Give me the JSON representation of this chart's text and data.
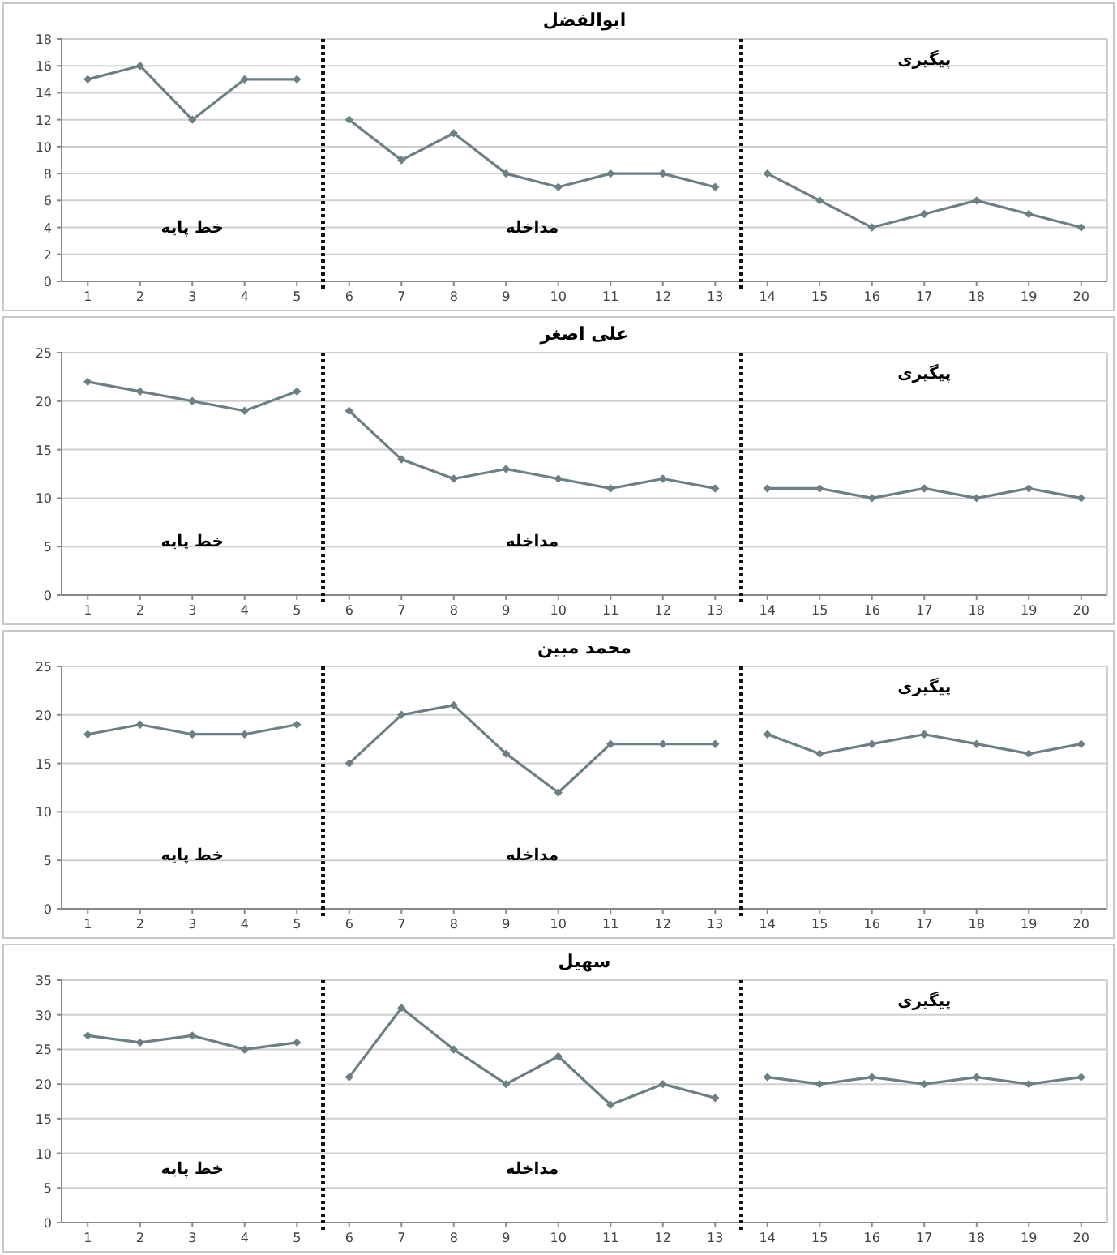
{
  "chart_data": [
    {
      "type": "line",
      "title": "ابوالفضل",
      "x": [
        1,
        2,
        3,
        4,
        5,
        6,
        7,
        8,
        9,
        10,
        11,
        12,
        13,
        14,
        15,
        16,
        17,
        18,
        19,
        20
      ],
      "xlim": [
        0.5,
        20.5
      ],
      "xticks": [
        1,
        2,
        3,
        4,
        5,
        6,
        7,
        8,
        9,
        10,
        11,
        12,
        13,
        14,
        15,
        16,
        17,
        18,
        19,
        20
      ],
      "ylim": [
        0,
        18
      ],
      "yticks": [
        0,
        2,
        4,
        6,
        8,
        10,
        12,
        14,
        16,
        18
      ],
      "grid": "y",
      "marker": "diamond",
      "series": [
        {
          "color": "#6b7f84",
          "values": [
            15,
            16,
            12,
            15,
            15,
            null,
            null,
            null,
            null,
            null,
            null,
            null,
            null,
            null,
            null,
            null,
            null,
            null,
            null,
            null
          ]
        },
        {
          "color": "#6b7f84",
          "values": [
            null,
            null,
            null,
            null,
            null,
            12,
            9,
            11,
            8,
            7,
            8,
            8,
            7,
            null,
            null,
            null,
            null,
            null,
            null,
            null
          ]
        },
        {
          "color": "#6b7f84",
          "values": [
            null,
            null,
            null,
            null,
            null,
            null,
            null,
            null,
            null,
            null,
            null,
            null,
            null,
            8,
            6,
            4,
            5,
            6,
            5,
            4
          ]
        }
      ],
      "ref_lines": [
        {
          "axis": "x",
          "value": 5.5,
          "line_style": "dotted",
          "color": "#111111"
        },
        {
          "axis": "x",
          "value": 13.5,
          "line_style": "dotted",
          "color": "#111111"
        }
      ],
      "annotations": [
        "خط پایه",
        "مداخله",
        "پیگیری"
      ]
    },
    {
      "type": "line",
      "title": "علی اصغر",
      "x": [
        1,
        2,
        3,
        4,
        5,
        6,
        7,
        8,
        9,
        10,
        11,
        12,
        13,
        14,
        15,
        16,
        17,
        18,
        19,
        20
      ],
      "xlim": [
        0.5,
        20.5
      ],
      "xticks": [
        1,
        2,
        3,
        4,
        5,
        6,
        7,
        8,
        9,
        10,
        11,
        12,
        13,
        14,
        15,
        16,
        17,
        18,
        19,
        20
      ],
      "ylim": [
        0,
        25
      ],
      "yticks": [
        0,
        5,
        10,
        15,
        20,
        25
      ],
      "grid": "y",
      "marker": "diamond",
      "series": [
        {
          "color": "#6b7f84",
          "values": [
            22,
            21,
            20,
            19,
            21,
            null,
            null,
            null,
            null,
            null,
            null,
            null,
            null,
            null,
            null,
            null,
            null,
            null,
            null,
            null
          ]
        },
        {
          "color": "#6b7f84",
          "values": [
            null,
            null,
            null,
            null,
            null,
            19,
            14,
            12,
            13,
            12,
            11,
            12,
            11,
            null,
            null,
            null,
            null,
            null,
            null,
            null
          ]
        },
        {
          "color": "#6b7f84",
          "values": [
            null,
            null,
            null,
            null,
            null,
            null,
            null,
            null,
            null,
            null,
            null,
            null,
            null,
            11,
            11,
            10,
            11,
            10,
            11,
            10
          ]
        }
      ],
      "ref_lines": [
        {
          "axis": "x",
          "value": 5.5,
          "line_style": "dotted",
          "color": "#111111"
        },
        {
          "axis": "x",
          "value": 13.5,
          "line_style": "dotted",
          "color": "#111111"
        }
      ],
      "annotations": [
        "خط پایه",
        "مداخله",
        "پیگیری"
      ]
    },
    {
      "type": "line",
      "title": "محمد مبین",
      "x": [
        1,
        2,
        3,
        4,
        5,
        6,
        7,
        8,
        9,
        10,
        11,
        12,
        13,
        14,
        15,
        16,
        17,
        18,
        19,
        20
      ],
      "xlim": [
        0.5,
        20.5
      ],
      "xticks": [
        1,
        2,
        3,
        4,
        5,
        6,
        7,
        8,
        9,
        10,
        11,
        12,
        13,
        14,
        15,
        16,
        17,
        18,
        19,
        20
      ],
      "ylim": [
        0,
        25
      ],
      "yticks": [
        0,
        5,
        10,
        15,
        20,
        25
      ],
      "grid": "y",
      "marker": "diamond",
      "series": [
        {
          "color": "#6b7f84",
          "values": [
            18,
            19,
            18,
            18,
            19,
            null,
            null,
            null,
            null,
            null,
            null,
            null,
            null,
            null,
            null,
            null,
            null,
            null,
            null,
            null
          ]
        },
        {
          "color": "#6b7f84",
          "values": [
            null,
            null,
            null,
            null,
            null,
            15,
            20,
            21,
            16,
            12,
            17,
            17,
            17,
            null,
            null,
            null,
            null,
            null,
            null,
            null
          ]
        },
        {
          "color": "#6b7f84",
          "values": [
            null,
            null,
            null,
            null,
            null,
            null,
            null,
            null,
            null,
            null,
            null,
            null,
            null,
            18,
            16,
            17,
            18,
            17,
            16,
            17
          ]
        }
      ],
      "ref_lines": [
        {
          "axis": "x",
          "value": 5.5,
          "line_style": "dotted",
          "color": "#111111"
        },
        {
          "axis": "x",
          "value": 13.5,
          "line_style": "dotted",
          "color": "#111111"
        }
      ],
      "annotations": [
        "خط پایه",
        "مداخله",
        "پیگیری"
      ]
    },
    {
      "type": "line",
      "title": "سهیل",
      "x": [
        1,
        2,
        3,
        4,
        5,
        6,
        7,
        8,
        9,
        10,
        11,
        12,
        13,
        14,
        15,
        16,
        17,
        18,
        19,
        20
      ],
      "xlim": [
        0.5,
        20.5
      ],
      "xticks": [
        1,
        2,
        3,
        4,
        5,
        6,
        7,
        8,
        9,
        10,
        11,
        12,
        13,
        14,
        15,
        16,
        17,
        18,
        19,
        20
      ],
      "ylim": [
        0,
        35
      ],
      "yticks": [
        0,
        5,
        10,
        15,
        20,
        25,
        30,
        35
      ],
      "grid": "y",
      "marker": "diamond",
      "series": [
        {
          "color": "#6b7f84",
          "values": [
            27,
            26,
            27,
            25,
            26,
            null,
            null,
            null,
            null,
            null,
            null,
            null,
            null,
            null,
            null,
            null,
            null,
            null,
            null,
            null
          ]
        },
        {
          "color": "#6b7f84",
          "values": [
            null,
            null,
            null,
            null,
            null,
            21,
            31,
            25,
            20,
            24,
            17,
            20,
            18,
            null,
            null,
            null,
            null,
            null,
            null,
            null
          ]
        },
        {
          "color": "#6b7f84",
          "values": [
            null,
            null,
            null,
            null,
            null,
            null,
            null,
            null,
            null,
            null,
            null,
            null,
            null,
            21,
            20,
            21,
            20,
            21,
            20,
            21
          ]
        }
      ],
      "ref_lines": [
        {
          "axis": "x",
          "value": 5.5,
          "line_style": "dotted",
          "color": "#111111"
        },
        {
          "axis": "x",
          "value": 13.5,
          "line_style": "dotted",
          "color": "#111111"
        }
      ],
      "annotations": [
        "خط پایه",
        "مداخله",
        "پیگیری"
      ]
    }
  ]
}
